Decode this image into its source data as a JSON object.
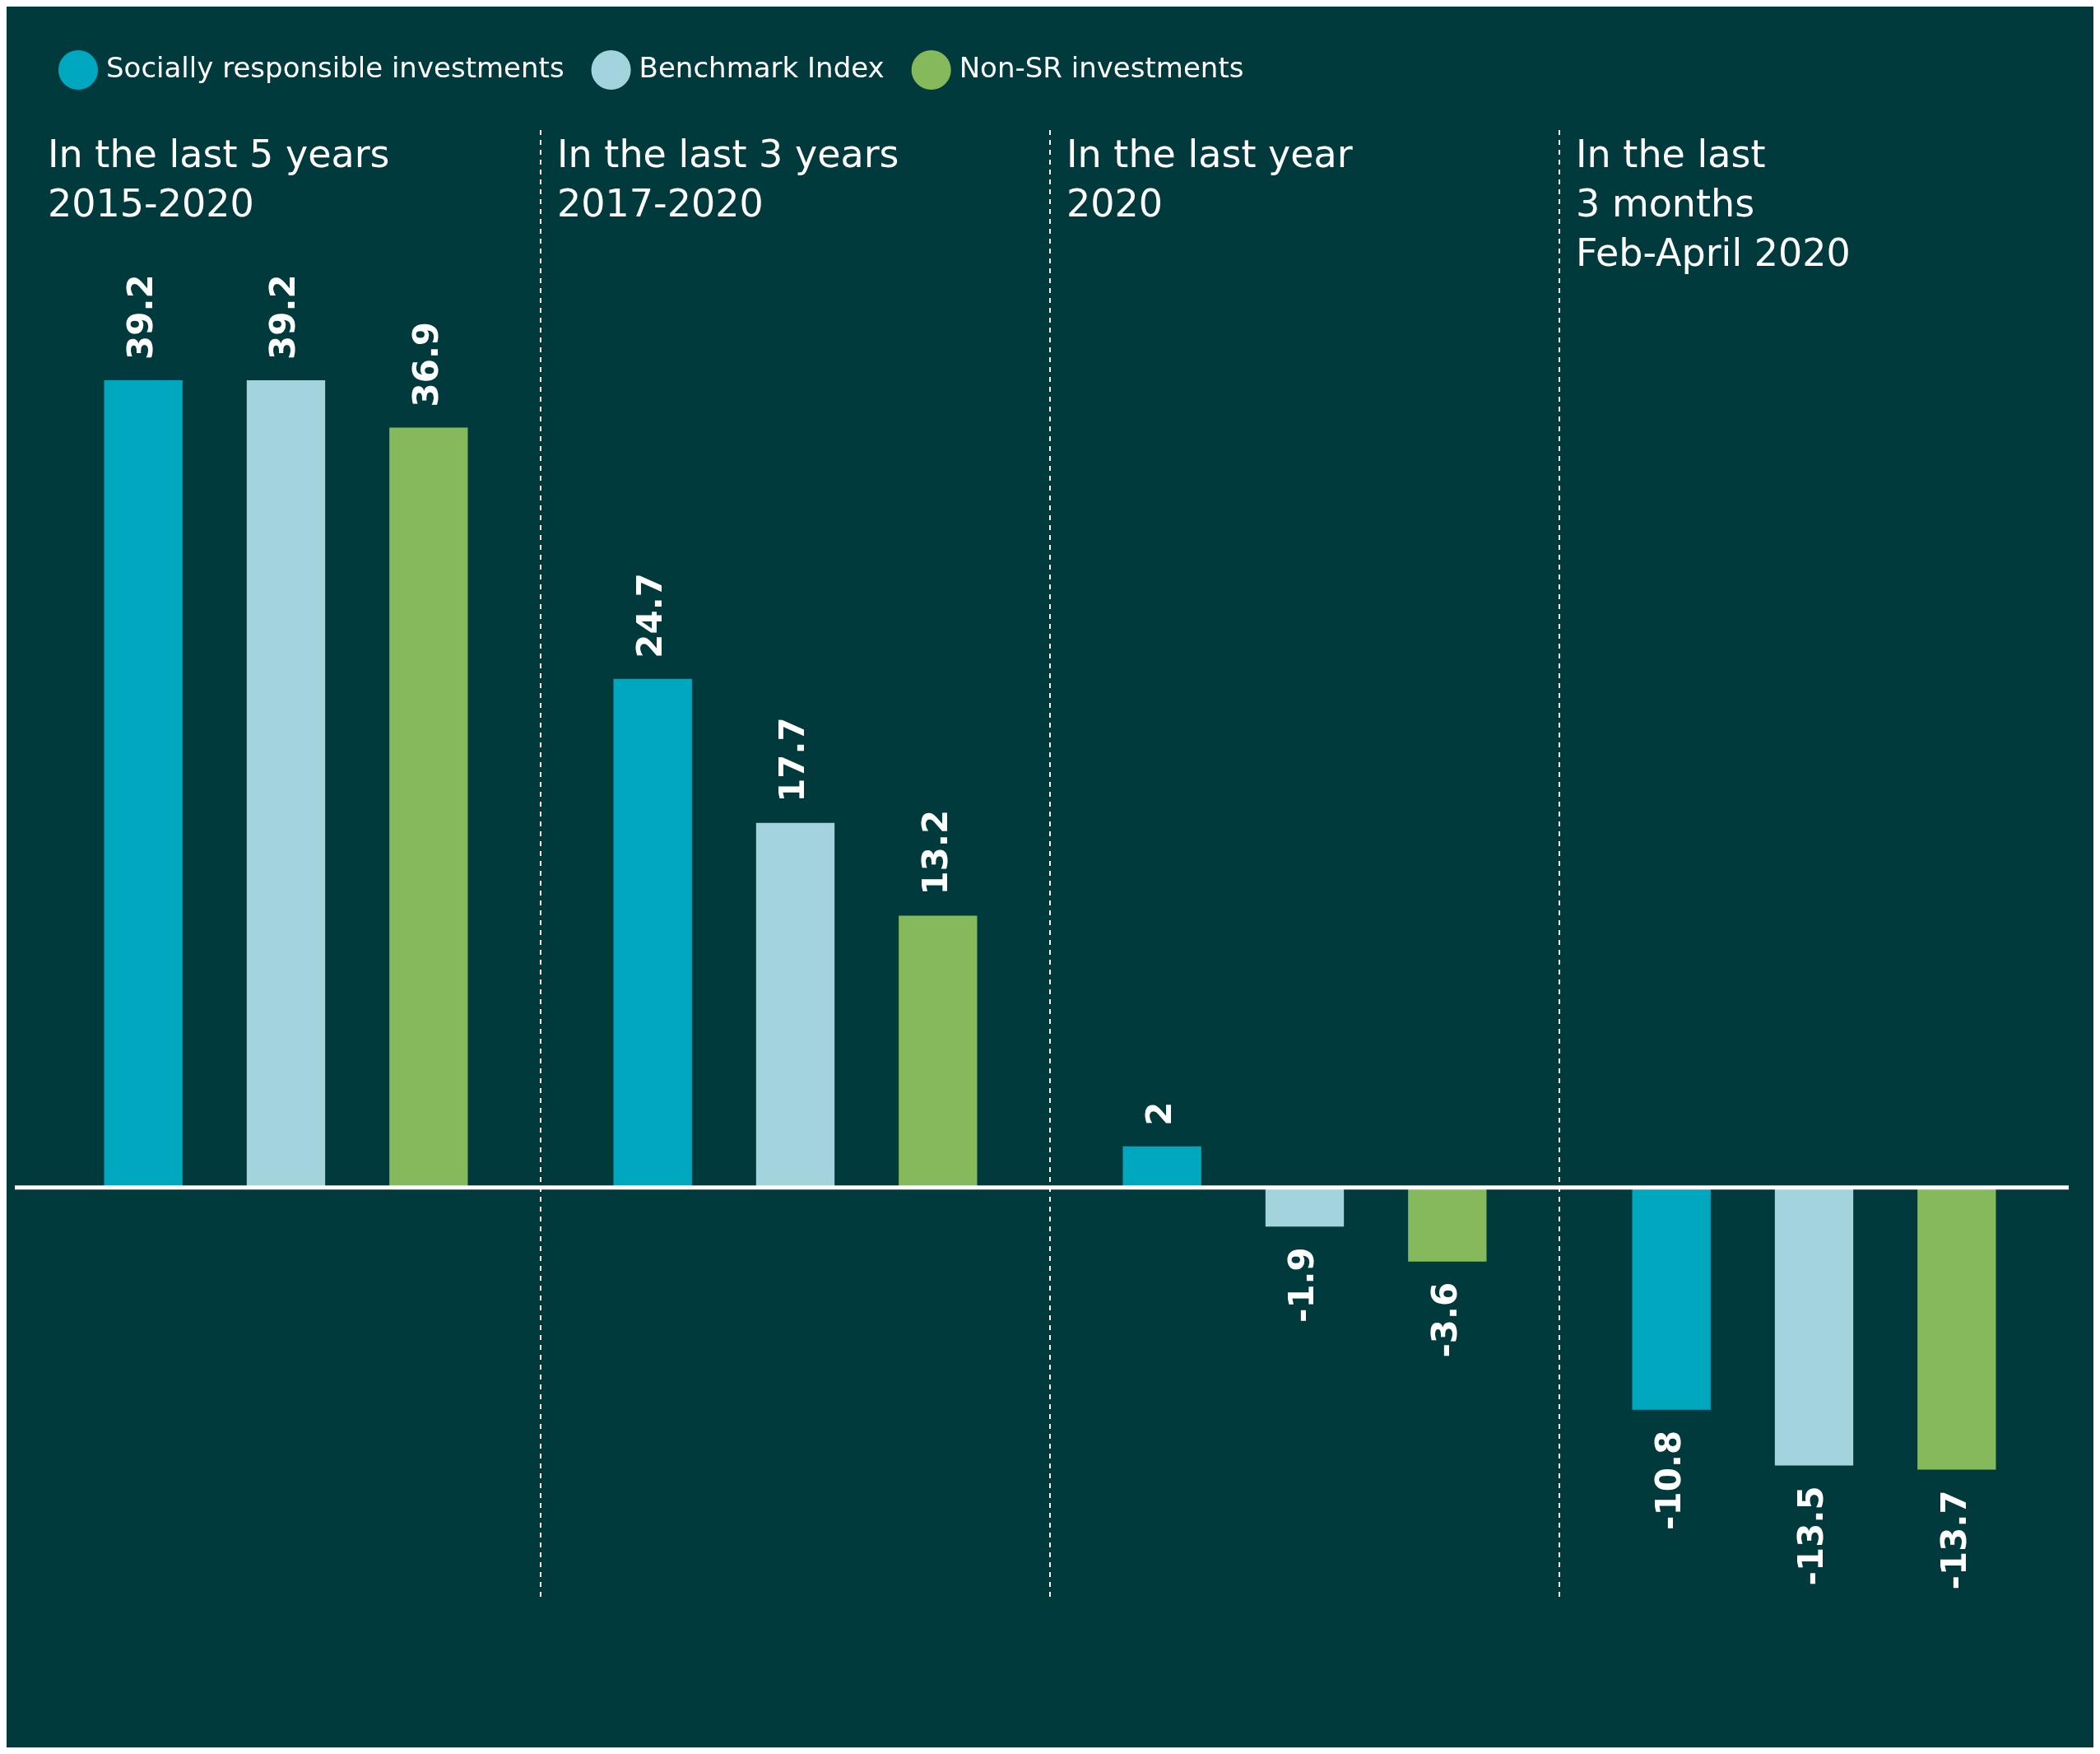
{
  "chart_data": {
    "type": "bar",
    "categories": [
      "In the last 5 years\n2015-2020",
      "In the last 3 years\n2017-2020",
      "In the last year\n2020",
      "In the last\n3 months\nFeb-April 2020"
    ],
    "series": [
      {
        "name": "Socially responsible investments",
        "color": "#00a8bf",
        "values": [
          39.2,
          24.7,
          2,
          -10.8
        ]
      },
      {
        "name": "Benchmark Index",
        "color": "#a3d4de",
        "values": [
          39.2,
          17.7,
          -1.9,
          -13.5
        ]
      },
      {
        "name": "Non-SR investments",
        "color": "#86b95c",
        "values": [
          36.9,
          13.2,
          -3.6,
          -13.7
        ]
      }
    ],
    "data_labels": true,
    "legend": "top left"
  }
}
